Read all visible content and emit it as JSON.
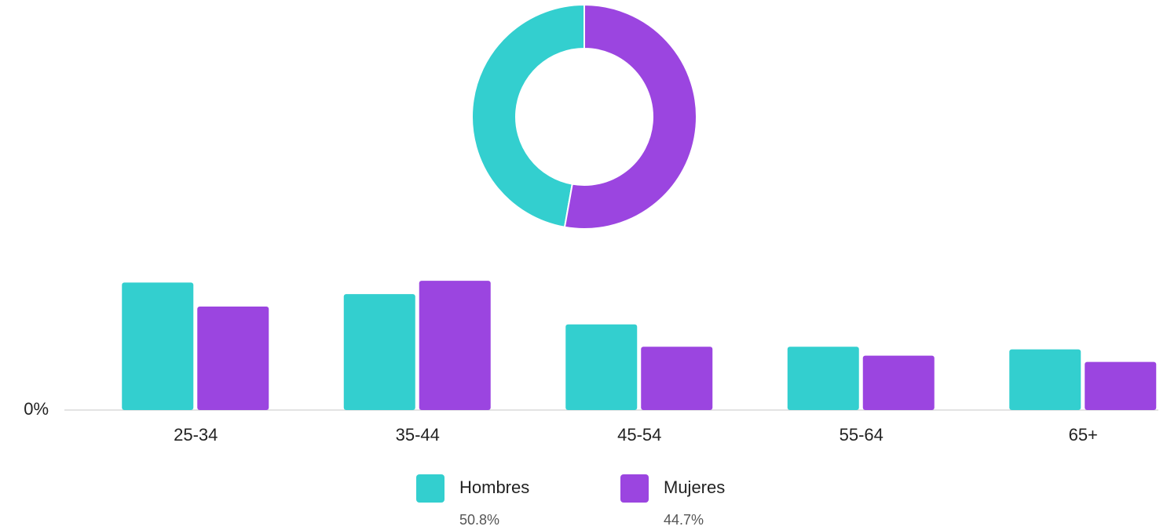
{
  "chart_data": [
    {
      "type": "pie",
      "categories": [
        "Hombres",
        "Mujeres"
      ],
      "values": [
        47.2,
        52.8
      ],
      "colors": [
        "#33cfcf",
        "#9b45e0"
      ]
    },
    {
      "type": "bar",
      "categories": [
        "25-34",
        "35-44",
        "45-54",
        "55-64",
        "65+"
      ],
      "series": [
        {
          "name": "Hombres",
          "color": "#33cfcf",
          "values": [
            14.3,
            13.0,
            9.6,
            7.1,
            6.8
          ]
        },
        {
          "name": "Mujeres",
          "color": "#9b45e0",
          "values": [
            11.6,
            14.5,
            7.1,
            6.1,
            5.4
          ]
        }
      ],
      "legend_notes": [
        "50.8%",
        "44.7%"
      ],
      "ylim": [
        0,
        16
      ],
      "yticks": [
        {
          "value": 0,
          "label": "0%"
        }
      ]
    }
  ]
}
